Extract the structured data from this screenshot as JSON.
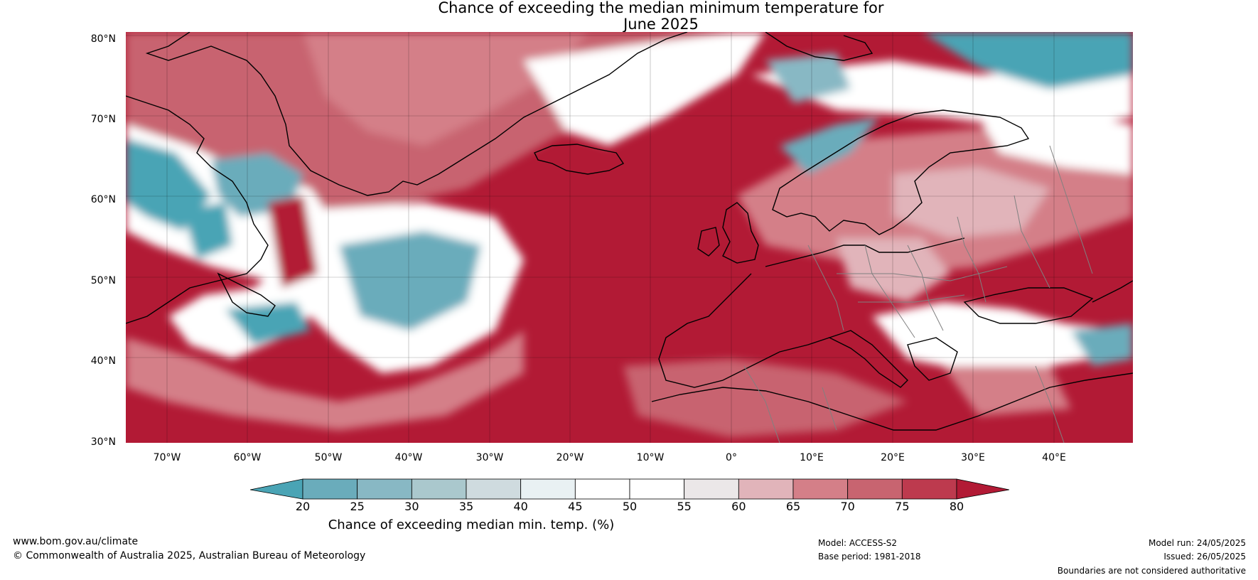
{
  "title": {
    "line1": "Chance of exceeding the median minimum temperature for",
    "line2": "June 2025"
  },
  "map": {
    "lat_labels": [
      "80°N",
      "70°N",
      "60°N",
      "50°N",
      "40°N",
      "30°N"
    ],
    "lon_labels": [
      "70°W",
      "60°W",
      "50°W",
      "40°W",
      "30°W",
      "20°W",
      "10°W",
      "0°",
      "10°E",
      "20°E",
      "30°E",
      "40°E"
    ],
    "colors": {
      "strong_warm": "#b21a35",
      "warm_75": "#c84a5a",
      "warm_70": "#d3707a",
      "warm_65": "#e3b5bb",
      "neutral": "#ffffff",
      "cool_40": "#e6eef1",
      "cool_30": "#8bb8c4",
      "cool_20": "#4aa4b5",
      "coast": "#000000",
      "border": "#808080"
    }
  },
  "colorbar": {
    "ticks": [
      "20",
      "25",
      "30",
      "35",
      "40",
      "45",
      "50",
      "55",
      "60",
      "65",
      "70",
      "75",
      "80"
    ],
    "bins": [
      "#4aa4b5",
      "#6aacbb",
      "#88b8c4",
      "#aac8cd",
      "#cfdbdf",
      "#e9f1f3",
      "#ffffff",
      "#ffffff",
      "#ebe7e8",
      "#e1b4ba",
      "#d47f88",
      "#c86470",
      "#bd3a4e",
      "#b21a35"
    ],
    "label": "Chance of exceeding median min. temp. (%)"
  },
  "footer": {
    "url": "www.bom.gov.au/climate",
    "copyright": "© Commonwealth of Australia 2025, Australian Bureau of Meteorology",
    "model": "Model: ACCESS-S2",
    "base_period": "Base period: 1981-2018",
    "model_run": "Model run: 24/05/2025",
    "issued": "Issued: 26/05/2025",
    "disclaimer": "Boundaries are not considered authoritative"
  }
}
